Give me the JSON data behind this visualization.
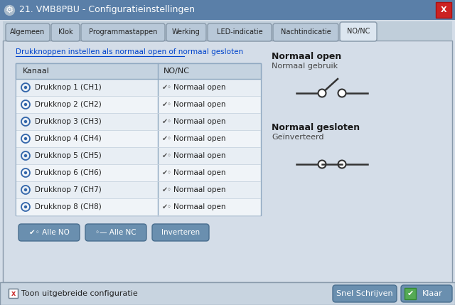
{
  "title": "21. VMB8PBU - Configuratieinstellingen",
  "bg_color": "#d4dde8",
  "title_bar_color": "#5a7fa8",
  "title_bar_text_color": "#ffffff",
  "tabs": [
    "Algemeen",
    "Klok",
    "Programmastappen",
    "Werking",
    "LED-indicatie",
    "Nachtindicatie",
    "NO/NC"
  ],
  "active_tab": "NO/NC",
  "tab_active_color": "#dce6f0",
  "tab_inactive_color": "#b8c8d8",
  "link_text": "Drukknoppen instellen als normaal open of normaal gesloten",
  "table_header": [
    "Kanaal",
    "NO/NC"
  ],
  "table_rows": [
    [
      "Drukknop 1 (CH1)",
      "Normaal open"
    ],
    [
      "Drukknop 2 (CH2)",
      "Normaal open"
    ],
    [
      "Drukknop 3 (CH3)",
      "Normaal open"
    ],
    [
      "Drukknop 4 (CH4)",
      "Normaal open"
    ],
    [
      "Drukknop 5 (CH5)",
      "Normaal open"
    ],
    [
      "Drukknop 6 (CH6)",
      "Normaal open"
    ],
    [
      "Drukknop 7 (CH7)",
      "Normaal open"
    ],
    [
      "Drukknop 8 (CH8)",
      "Normaal open"
    ]
  ],
  "table_bg": "#f0f4f8",
  "table_header_bg": "#c5d3e0",
  "table_border_color": "#8fa8c0",
  "right_panel": {
    "title1": "Normaal open",
    "subtitle1": "Normaal gebruik",
    "title2": "Normaal gesloten",
    "subtitle2": "Geïnverteerd"
  },
  "buttons_bottom_left": [
    "Alle NO",
    "Alle NC",
    "Inverteren"
  ],
  "buttons_bottom_right": [
    "Snel Schrijven",
    "Klaar"
  ],
  "button_color": "#6a8faf",
  "button_text_color": "#ffffff",
  "footer_text": "Toon uitgebreide configuratie",
  "footer_bg": "#c8d4e0",
  "close_btn_color": "#cc2222",
  "tab_widths": [
    62,
    40,
    118,
    56,
    90,
    92,
    52
  ]
}
